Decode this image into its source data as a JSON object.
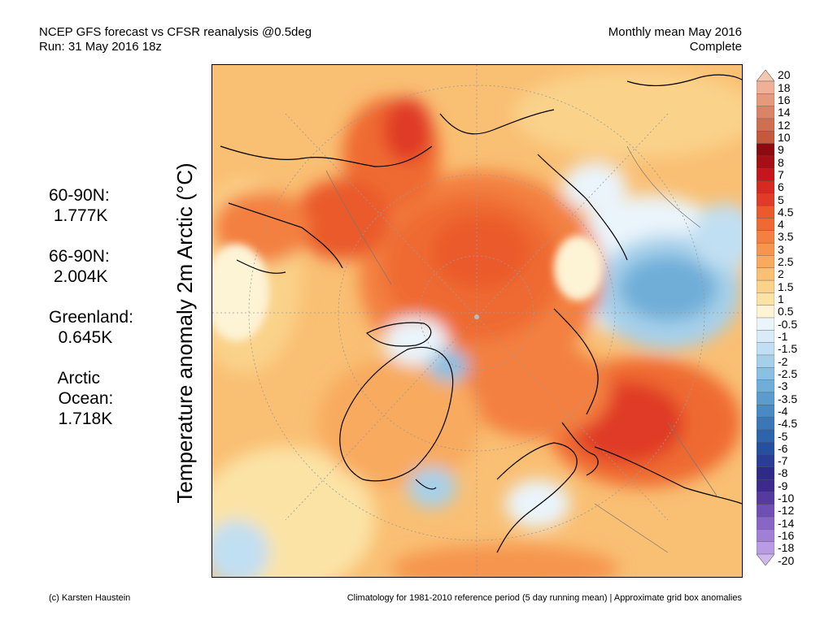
{
  "header": {
    "title_line1": "NCEP GFS forecast vs CFSR reanalysis @0.5deg",
    "title_line2": "Run: 31 May 2016 18z",
    "period_line1": "Monthly mean May 2016",
    "period_line2": "Complete"
  },
  "stats": [
    {
      "label": "60-90N:",
      "value": " 1.777K"
    },
    {
      "label": "66-90N:",
      "value": " 2.004K"
    },
    {
      "label": "Greenland:",
      "value": "  0.645K"
    },
    {
      "label": "  Arctic\n  Ocean:",
      "value": "  1.718K"
    }
  ],
  "ylabel": "Temperature anomaly 2m Arctic (°C)",
  "colorbar": {
    "labels": [
      "20",
      "18",
      "16",
      "14",
      "12",
      "10",
      "9",
      "8",
      "7",
      "6",
      "5",
      "4.5",
      "4",
      "3.5",
      "3",
      "2.5",
      "2",
      "1.5",
      "1",
      "0.5",
      "-0.5",
      "-1",
      "-1.5",
      "-2",
      "-2.5",
      "-3",
      "-3.5",
      "-4",
      "-4.5",
      "-5",
      "-6",
      "-7",
      "-8",
      "-9",
      "-10",
      "-12",
      "-14",
      "-16",
      "-18",
      "-20"
    ],
    "colors": [
      "#f5c6b0",
      "#eeb096",
      "#e59a7c",
      "#d98466",
      "#cf6e51",
      "#c4593f",
      "#8e0a10",
      "#a50f15",
      "#c4161c",
      "#d42a20",
      "#e03b26",
      "#ea5a2b",
      "#ef6a33",
      "#f38040",
      "#f6954e",
      "#f8aa5f",
      "#f9bf73",
      "#fad28a",
      "#fbe3a6",
      "#fdf3d5",
      "#eaf4fb",
      "#d8ebf7",
      "#c1dff2",
      "#a6d0ea",
      "#8ac0e2",
      "#70aed8",
      "#5b9ccd",
      "#4a89c2",
      "#3b77b7",
      "#2d64ab",
      "#25509f",
      "#2a3d94",
      "#2d2a88",
      "#3c2a8c",
      "#553aa0",
      "#6e4fb3",
      "#8766c5",
      "#9f80d4",
      "#b89be2",
      "#d0b8ee"
    ]
  },
  "footer": {
    "credit": "(c) Karsten Haustein",
    "note": "Climatology for 1981-2010 reference period (5 day running mean) | Approximate grid box anomalies"
  }
}
